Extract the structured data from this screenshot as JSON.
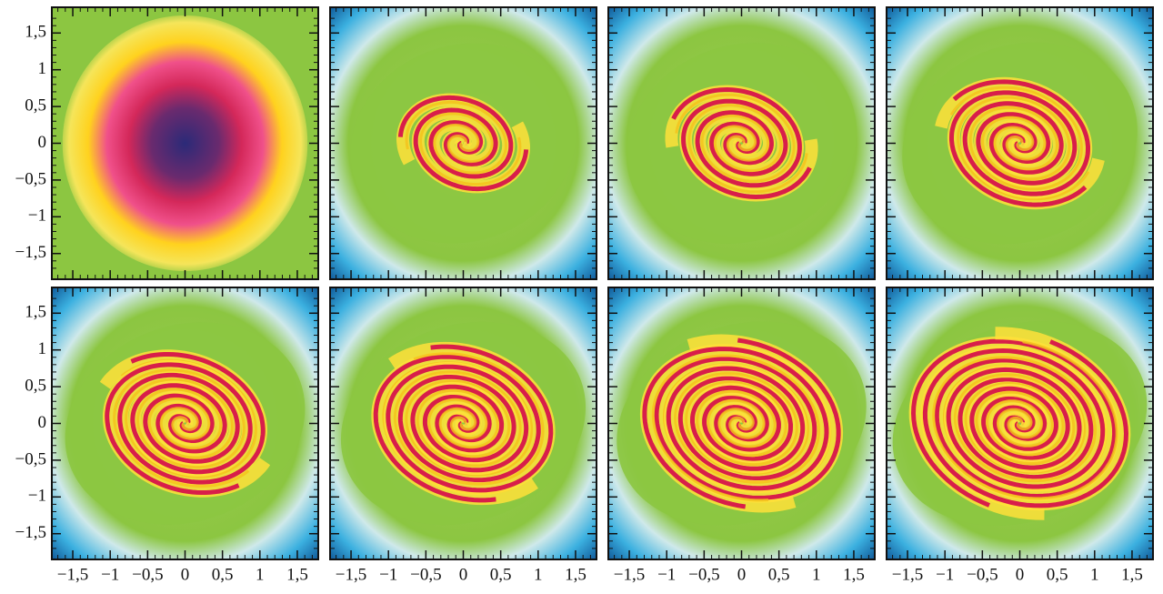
{
  "chart_data": {
    "type": "image-grid",
    "rows": 2,
    "cols": 4,
    "xlim": [
      -1.78,
      1.78
    ],
    "ylim": [
      -1.85,
      1.85
    ],
    "xticks": [
      {
        "value": -1.5,
        "label": "−1,5"
      },
      {
        "value": -1,
        "label": "−1"
      },
      {
        "value": -0.5,
        "label": "−0,5"
      },
      0,
      {
        "value": 0.5,
        "label": "0,5"
      },
      1,
      {
        "value": 1.5,
        "label": "1,5"
      }
    ],
    "yticks": [
      {
        "value": -1.5,
        "label": "−1,5"
      },
      {
        "value": -1,
        "label": "−1"
      },
      {
        "value": -0.5,
        "label": "−0,5"
      },
      0,
      {
        "value": 0.5,
        "label": "0,5"
      },
      1,
      {
        "value": 1.5,
        "label": "1,5"
      }
    ],
    "minor_ticks": [
      -1.7,
      -1.6,
      -1.5,
      -1.4,
      -1.3,
      -1.2,
      -1.1,
      -1.0,
      -0.9,
      -0.8,
      -0.7,
      -0.6,
      -0.5,
      -0.4,
      -0.3,
      -0.2,
      -0.1,
      0,
      0.1,
      0.2,
      0.3,
      0.4,
      0.5,
      0.6,
      0.7,
      0.8,
      0.9,
      1.0,
      1.1,
      1.2,
      1.3,
      1.4,
      1.5,
      1.6,
      1.7
    ]
  }
}
